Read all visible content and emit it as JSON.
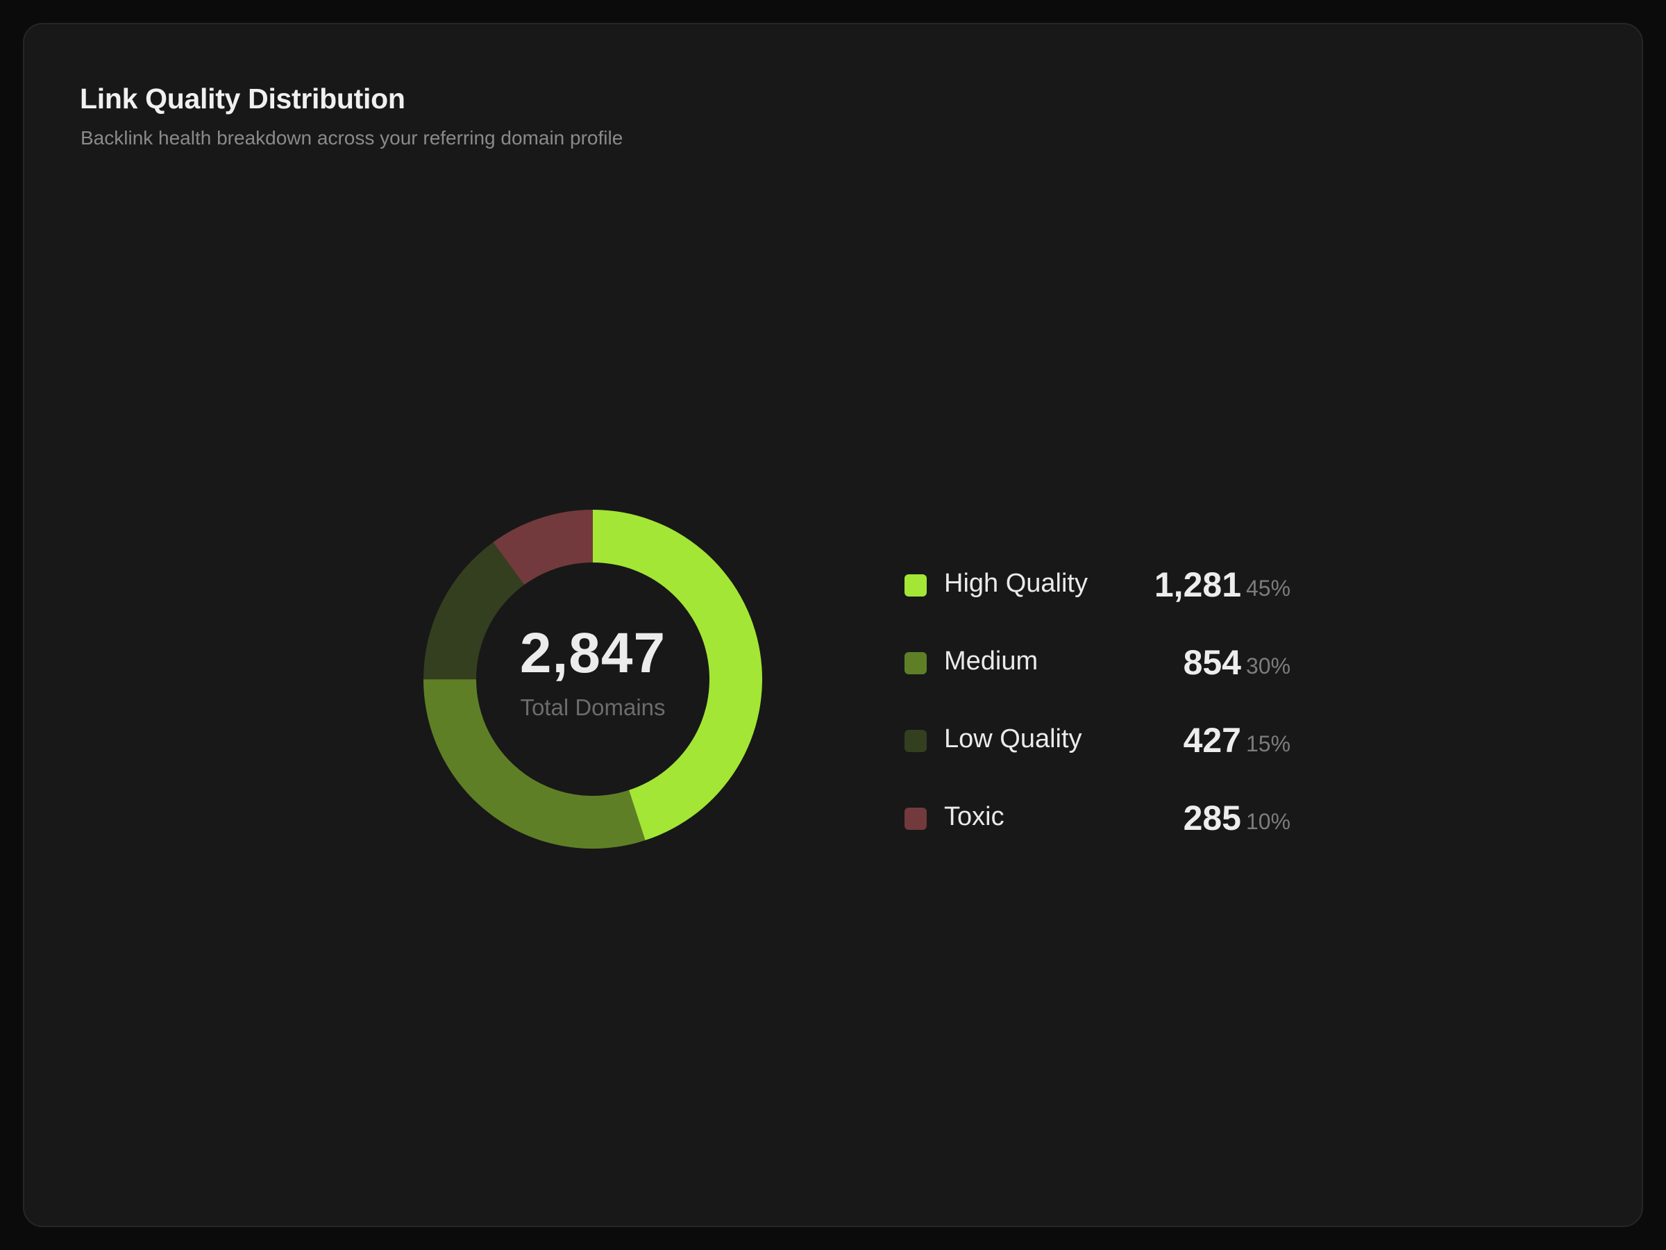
{
  "header": {
    "title": "Link Quality Distribution",
    "subtitle": "Backlink health breakdown across your referring domain profile"
  },
  "center": {
    "total": "2,847",
    "caption": "Total Domains"
  },
  "legend": [
    {
      "label": "High Quality",
      "value": "1,281",
      "percent": "45%",
      "color": "#a3e635"
    },
    {
      "label": "Medium",
      "value": "854",
      "percent": "30%",
      "color": "#5f7f27"
    },
    {
      "label": "Low Quality",
      "value": "427",
      "percent": "15%",
      "color": "#333f1f"
    },
    {
      "label": "Toxic",
      "value": "285",
      "percent": "10%",
      "color": "#723a3c"
    }
  ],
  "chart_data": {
    "type": "pie",
    "variant": "donut",
    "categories": [
      "High Quality",
      "Medium",
      "Low Quality",
      "Toxic"
    ],
    "values": [
      1281,
      854,
      427,
      285
    ],
    "percentages": [
      45,
      30,
      15,
      10
    ],
    "total": 2847,
    "colors": [
      "#a3e635",
      "#5f7f27",
      "#333f1f",
      "#723a3c"
    ],
    "start": "top, clockwise",
    "legend_position": "right"
  }
}
